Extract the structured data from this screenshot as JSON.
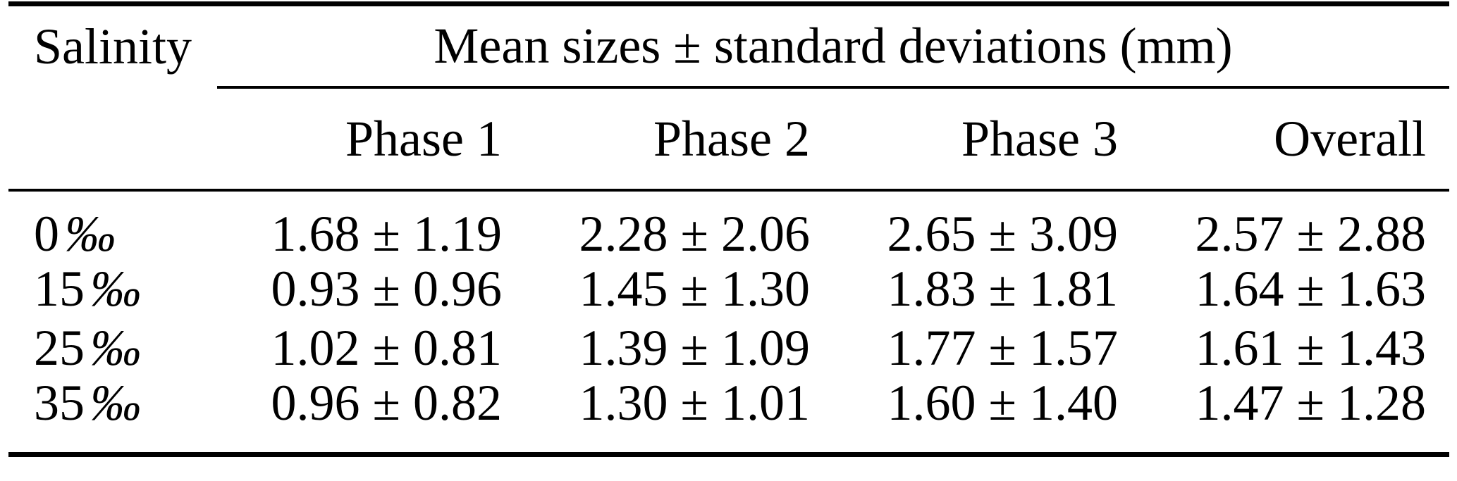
{
  "colors": {
    "text": "#000000",
    "background": "#ffffff",
    "rule": "#000000"
  },
  "table": {
    "col1_header": "Salinity",
    "span_header": "Mean sizes ± standard deviations (mm)",
    "columns": [
      "Phase 1",
      "Phase 2",
      "Phase 3",
      "Overall"
    ],
    "rows": [
      {
        "salinity_value": "0",
        "salinity_unit": "‰",
        "phase1": "1.68 ± 1.19",
        "phase2": "2.28 ± 2.06",
        "phase3": "2.65 ± 3.09",
        "overall": "2.57 ± 2.88"
      },
      {
        "salinity_value": "15",
        "salinity_unit": "‰",
        "phase1": "0.93 ± 0.96",
        "phase2": "1.45 ± 1.30",
        "phase3": "1.83 ± 1.81",
        "overall": "1.64 ± 1.63"
      },
      {
        "salinity_value": "25",
        "salinity_unit": "‰",
        "phase1": "1.02 ± 0.81",
        "phase2": "1.39 ± 1.09",
        "phase3": "1.77 ± 1.57",
        "overall": "1.61 ± 1.43"
      },
      {
        "salinity_value": "35",
        "salinity_unit": "‰",
        "phase1": "0.96 ± 0.82",
        "phase2": "1.30 ± 1.01",
        "phase3": "1.60 ± 1.40",
        "overall": "1.47 ± 1.28"
      }
    ]
  }
}
